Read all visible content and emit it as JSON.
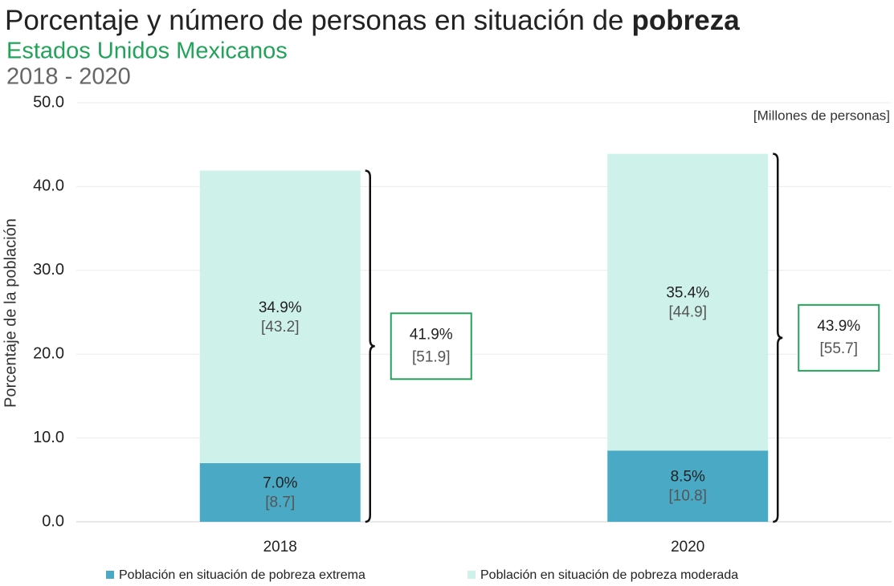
{
  "chart_data": {
    "type": "stacked_bar",
    "title": [
      "Porcentaje y número de personas en situación de",
      "pobreza"
    ],
    "subtitle": "Estados Unidos Mexicanos",
    "period": "2018 - 2020",
    "unit_note": "[Millones de personas]",
    "ylabel": "Porcentaje de la población",
    "categories": [
      "2018",
      "2020"
    ],
    "ylim": [
      0,
      50
    ],
    "yticks": [
      {
        "value": 0,
        "label": "0.0"
      },
      {
        "value": 10,
        "label": "10.0"
      },
      {
        "value": 20,
        "label": "20.0"
      },
      {
        "value": 30,
        "label": "30.0"
      },
      {
        "value": 40,
        "label": "40.0"
      },
      {
        "value": 50,
        "label": "50.0"
      }
    ],
    "grid": true,
    "series": [
      {
        "name": "Población en situación de pobreza extrema",
        "color": "#4aaac6",
        "values": [
          7.0,
          8.5
        ],
        "value_labels": [
          "7.0%",
          "8.5%"
        ],
        "millions": [
          8.7,
          10.8
        ],
        "millions_labels": [
          "[8.7]",
          "[10.8]"
        ]
      },
      {
        "name": "Población en situación de pobreza moderada",
        "color": "#cef1ea",
        "values": [
          34.9,
          35.4
        ],
        "value_labels": [
          "34.9%",
          "35.4%"
        ],
        "millions": [
          43.2,
          44.9
        ],
        "millions_labels": [
          "[43.2]",
          "[44.9]"
        ]
      }
    ],
    "totals": {
      "values": [
        41.9,
        43.9
      ],
      "value_labels": [
        "41.9%",
        "43.9%"
      ],
      "millions": [
        51.9,
        55.7
      ],
      "millions_labels": [
        "[51.9]",
        "[55.7]"
      ],
      "color": "#22a35a"
    }
  }
}
